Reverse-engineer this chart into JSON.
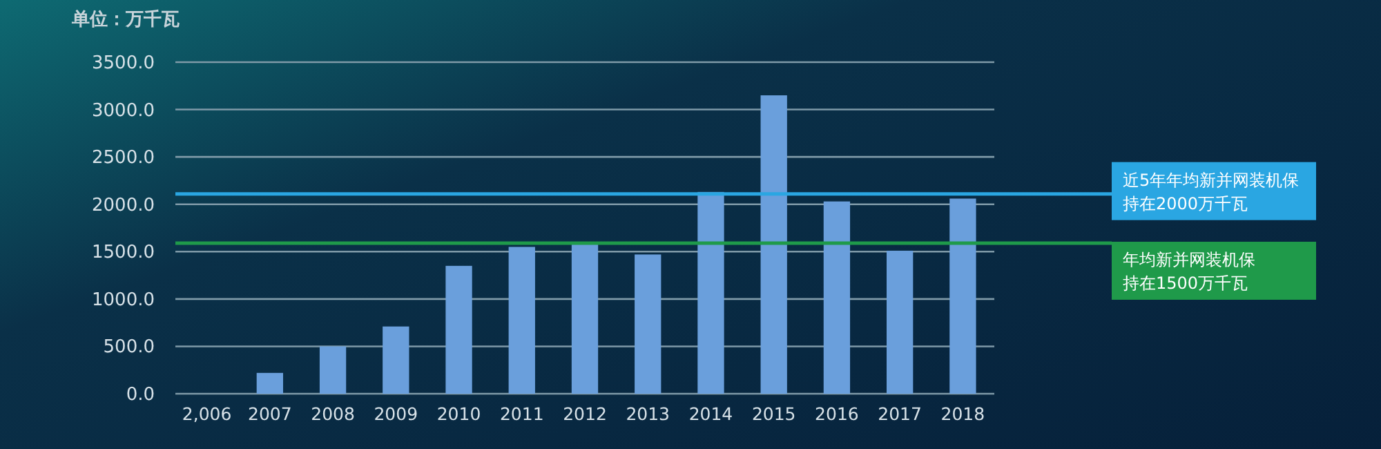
{
  "chart_data": {
    "type": "bar",
    "ylabel": "单位：万千瓦",
    "categories": [
      "2,006",
      "2007",
      "2008",
      "2009",
      "2010",
      "2011",
      "2012",
      "2013",
      "2014",
      "2015",
      "2016",
      "2017",
      "2018"
    ],
    "values": [
      0,
      220,
      500,
      710,
      1350,
      1550,
      1590,
      1470,
      2130,
      3150,
      2030,
      1510,
      2060
    ],
    "color": "#6a9fdc",
    "ylim": [
      0,
      3500
    ],
    "yticks": [
      {
        "value": 0,
        "label": "0.0"
      },
      {
        "value": 500,
        "label": "500.0"
      },
      {
        "value": 1000,
        "label": "1000.0"
      },
      {
        "value": 1500,
        "label": "1500.0"
      },
      {
        "value": 2000,
        "label": "2000.0"
      },
      {
        "value": 2500,
        "label": "2500.0"
      },
      {
        "value": 3000,
        "label": "3000.0"
      },
      {
        "value": 3500,
        "label": "3500.0"
      }
    ],
    "grid": "y",
    "ref_lines": [
      {
        "axis": "y",
        "value": 2110,
        "label": "近5年年均新并网装机保持在2000万千瓦",
        "color": "#2aa6e2"
      },
      {
        "axis": "y",
        "value": 1590,
        "label": "年均新并网装机保持在1500万千瓦",
        "color": "#1f9a4a"
      }
    ]
  }
}
